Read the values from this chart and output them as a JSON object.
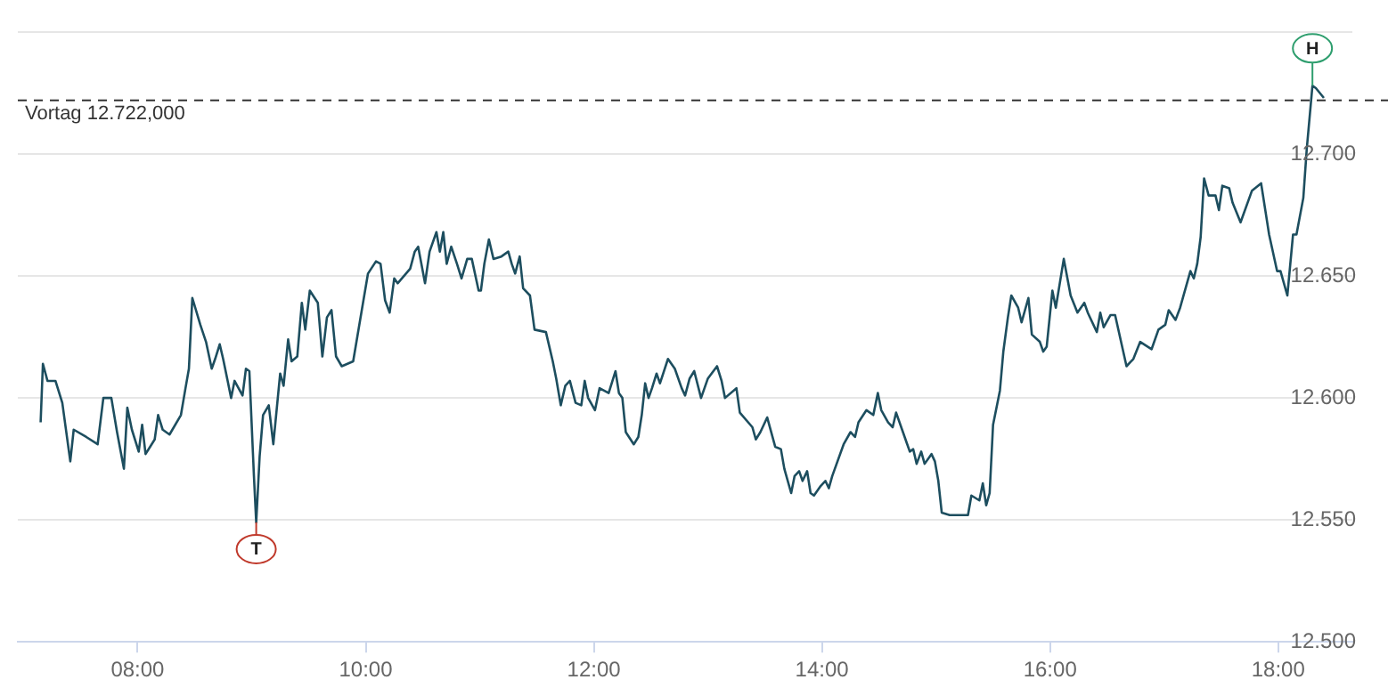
{
  "chart_data": {
    "type": "line",
    "x": [
      7.15,
      7.17,
      7.21,
      7.28,
      7.34,
      7.41,
      7.44,
      7.55,
      7.65,
      7.7,
      7.77,
      7.82,
      7.88,
      7.91,
      7.95,
      8.01,
      8.04,
      8.07,
      8.15,
      8.18,
      8.22,
      8.28,
      8.38,
      8.42,
      8.45,
      8.48,
      8.55,
      8.6,
      8.65,
      8.68,
      8.72,
      8.75,
      8.82,
      8.85,
      8.92,
      8.95,
      8.98,
      9.02,
      9.04,
      9.07,
      9.1,
      9.15,
      9.19,
      9.25,
      9.28,
      9.32,
      9.35,
      9.4,
      9.44,
      9.47,
      9.51,
      9.58,
      9.62,
      9.66,
      9.7,
      9.74,
      9.79,
      9.89,
      9.98,
      10.02,
      10.09,
      10.13,
      10.17,
      10.21,
      10.25,
      10.28,
      10.39,
      10.43,
      10.46,
      10.52,
      10.56,
      10.62,
      10.65,
      10.68,
      10.71,
      10.75,
      10.8,
      10.84,
      10.89,
      10.93,
      10.99,
      11.01,
      11.04,
      11.08,
      11.12,
      11.19,
      11.25,
      11.28,
      11.31,
      11.35,
      11.38,
      11.44,
      11.48,
      11.58,
      11.64,
      11.67,
      11.71,
      11.75,
      11.79,
      11.84,
      11.89,
      11.92,
      11.95,
      12.01,
      12.05,
      12.13,
      12.19,
      12.22,
      12.25,
      12.28,
      12.35,
      12.39,
      12.42,
      12.45,
      12.48,
      12.51,
      12.55,
      12.58,
      12.65,
      12.71,
      12.77,
      12.8,
      12.84,
      12.88,
      12.94,
      13.0,
      13.08,
      13.12,
      13.15,
      13.25,
      13.28,
      13.39,
      13.42,
      13.46,
      13.52,
      13.59,
      13.64,
      13.67,
      13.73,
      13.76,
      13.8,
      13.83,
      13.87,
      13.9,
      13.93,
      13.99,
      14.03,
      14.06,
      14.09,
      14.19,
      14.25,
      14.29,
      14.32,
      14.39,
      14.45,
      14.49,
      14.52,
      14.58,
      14.62,
      14.65,
      14.71,
      14.77,
      14.8,
      14.83,
      14.87,
      14.9,
      14.96,
      14.99,
      15.02,
      15.05,
      15.12,
      15.21,
      15.28,
      15.31,
      15.38,
      15.41,
      15.44,
      15.47,
      15.5,
      15.56,
      15.59,
      15.63,
      15.66,
      15.72,
      15.75,
      15.81,
      15.84,
      15.91,
      15.94,
      15.97,
      16.02,
      16.05,
      16.12,
      16.18,
      16.24,
      16.3,
      16.33,
      16.41,
      16.44,
      16.47,
      16.53,
      16.57,
      16.67,
      16.73,
      16.79,
      16.89,
      16.95,
      17.01,
      17.04,
      17.1,
      17.14,
      17.23,
      17.26,
      17.29,
      17.32,
      17.35,
      17.39,
      17.45,
      17.48,
      17.51,
      17.57,
      17.6,
      17.67,
      17.77,
      17.85,
      17.92,
      17.99,
      18.02,
      18.08,
      18.13,
      18.16,
      18.22,
      18.25,
      18.3,
      18.33,
      18.4
    ],
    "series": [
      {
        "color": "#1d4e5f",
        "values": [
          12.59,
          12.614,
          12.607,
          12.607,
          12.598,
          12.574,
          12.587,
          12.584,
          12.581,
          12.6,
          12.6,
          12.586,
          12.571,
          12.596,
          12.587,
          12.578,
          12.589,
          12.577,
          12.583,
          12.593,
          12.587,
          12.585,
          12.593,
          12.604,
          12.612,
          12.641,
          12.63,
          12.623,
          12.612,
          12.616,
          12.622,
          12.616,
          12.6,
          12.607,
          12.601,
          12.612,
          12.611,
          12.568,
          12.549,
          12.576,
          12.593,
          12.597,
          12.581,
          12.61,
          12.605,
          12.624,
          12.615,
          12.617,
          12.639,
          12.628,
          12.644,
          12.639,
          12.617,
          12.633,
          12.636,
          12.617,
          12.613,
          12.615,
          12.64,
          12.651,
          12.656,
          12.655,
          12.64,
          12.635,
          12.649,
          12.647,
          12.653,
          12.66,
          12.662,
          12.647,
          12.66,
          12.668,
          12.66,
          12.668,
          12.655,
          12.662,
          12.655,
          12.649,
          12.657,
          12.657,
          12.644,
          12.644,
          12.655,
          12.665,
          12.657,
          12.658,
          12.66,
          12.655,
          12.651,
          12.658,
          12.645,
          12.642,
          12.628,
          12.627,
          12.615,
          12.608,
          12.597,
          12.605,
          12.607,
          12.598,
          12.597,
          12.607,
          12.6,
          12.595,
          12.604,
          12.602,
          12.611,
          12.602,
          12.6,
          12.586,
          12.581,
          12.584,
          12.593,
          12.606,
          12.6,
          12.604,
          12.61,
          12.606,
          12.616,
          12.612,
          12.604,
          12.601,
          12.608,
          12.611,
          12.6,
          12.608,
          12.613,
          12.607,
          12.6,
          12.604,
          12.594,
          12.588,
          12.583,
          12.586,
          12.592,
          12.58,
          12.579,
          12.571,
          12.561,
          12.568,
          12.57,
          12.566,
          12.57,
          12.561,
          12.56,
          12.564,
          12.566,
          12.563,
          12.568,
          12.581,
          12.586,
          12.584,
          12.59,
          12.595,
          12.593,
          12.602,
          12.595,
          12.59,
          12.588,
          12.594,
          12.586,
          12.578,
          12.579,
          12.573,
          12.578,
          12.573,
          12.577,
          12.574,
          12.566,
          12.553,
          12.552,
          12.552,
          12.552,
          12.56,
          12.558,
          12.565,
          12.556,
          12.561,
          12.589,
          12.603,
          12.619,
          12.633,
          12.642,
          12.637,
          12.631,
          12.641,
          12.626,
          12.623,
          12.619,
          12.621,
          12.644,
          12.637,
          12.657,
          12.642,
          12.635,
          12.639,
          12.635,
          12.627,
          12.635,
          12.629,
          12.634,
          12.634,
          12.613,
          12.616,
          12.623,
          12.62,
          12.628,
          12.63,
          12.636,
          12.632,
          12.637,
          12.652,
          12.649,
          12.655,
          12.666,
          12.69,
          12.683,
          12.683,
          12.677,
          12.687,
          12.686,
          12.68,
          12.672,
          12.685,
          12.688,
          12.667,
          12.652,
          12.652,
          12.642,
          12.667,
          12.667,
          12.682,
          12.702,
          12.728,
          12.727,
          12.723
        ]
      }
    ],
    "xlim": [
      6.95,
      18.65
    ],
    "xticks": [
      {
        "value": 8,
        "label": "08:00"
      },
      {
        "value": 10,
        "label": "10:00"
      },
      {
        "value": 12,
        "label": "12:00"
      },
      {
        "value": 14,
        "label": "14:00"
      },
      {
        "value": 16,
        "label": "16:00"
      },
      {
        "value": 18,
        "label": "18:00"
      }
    ],
    "ylim": [
      12.5,
      12.75
    ],
    "yticks": [
      {
        "value": 12.5,
        "label": "12.500"
      },
      {
        "value": 12.55,
        "label": "12.550"
      },
      {
        "value": 12.6,
        "label": "12.600"
      },
      {
        "value": 12.65,
        "label": "12.650"
      },
      {
        "value": 12.7,
        "label": "12.700"
      },
      {
        "value": 12.75,
        "label": null
      }
    ],
    "ref_lines": [
      {
        "axis": "y",
        "value": 12.722,
        "label": "Vortag 12.722,000",
        "color": "#333333",
        "line_style": "dashed"
      }
    ],
    "annotations": [
      {
        "text": "T",
        "x": 9.04,
        "y": 12.549
      },
      {
        "text": "H",
        "x": 18.3,
        "y": 12.728
      }
    ],
    "grid": "y",
    "legend": false,
    "marker": "none",
    "line_style": "solid"
  }
}
